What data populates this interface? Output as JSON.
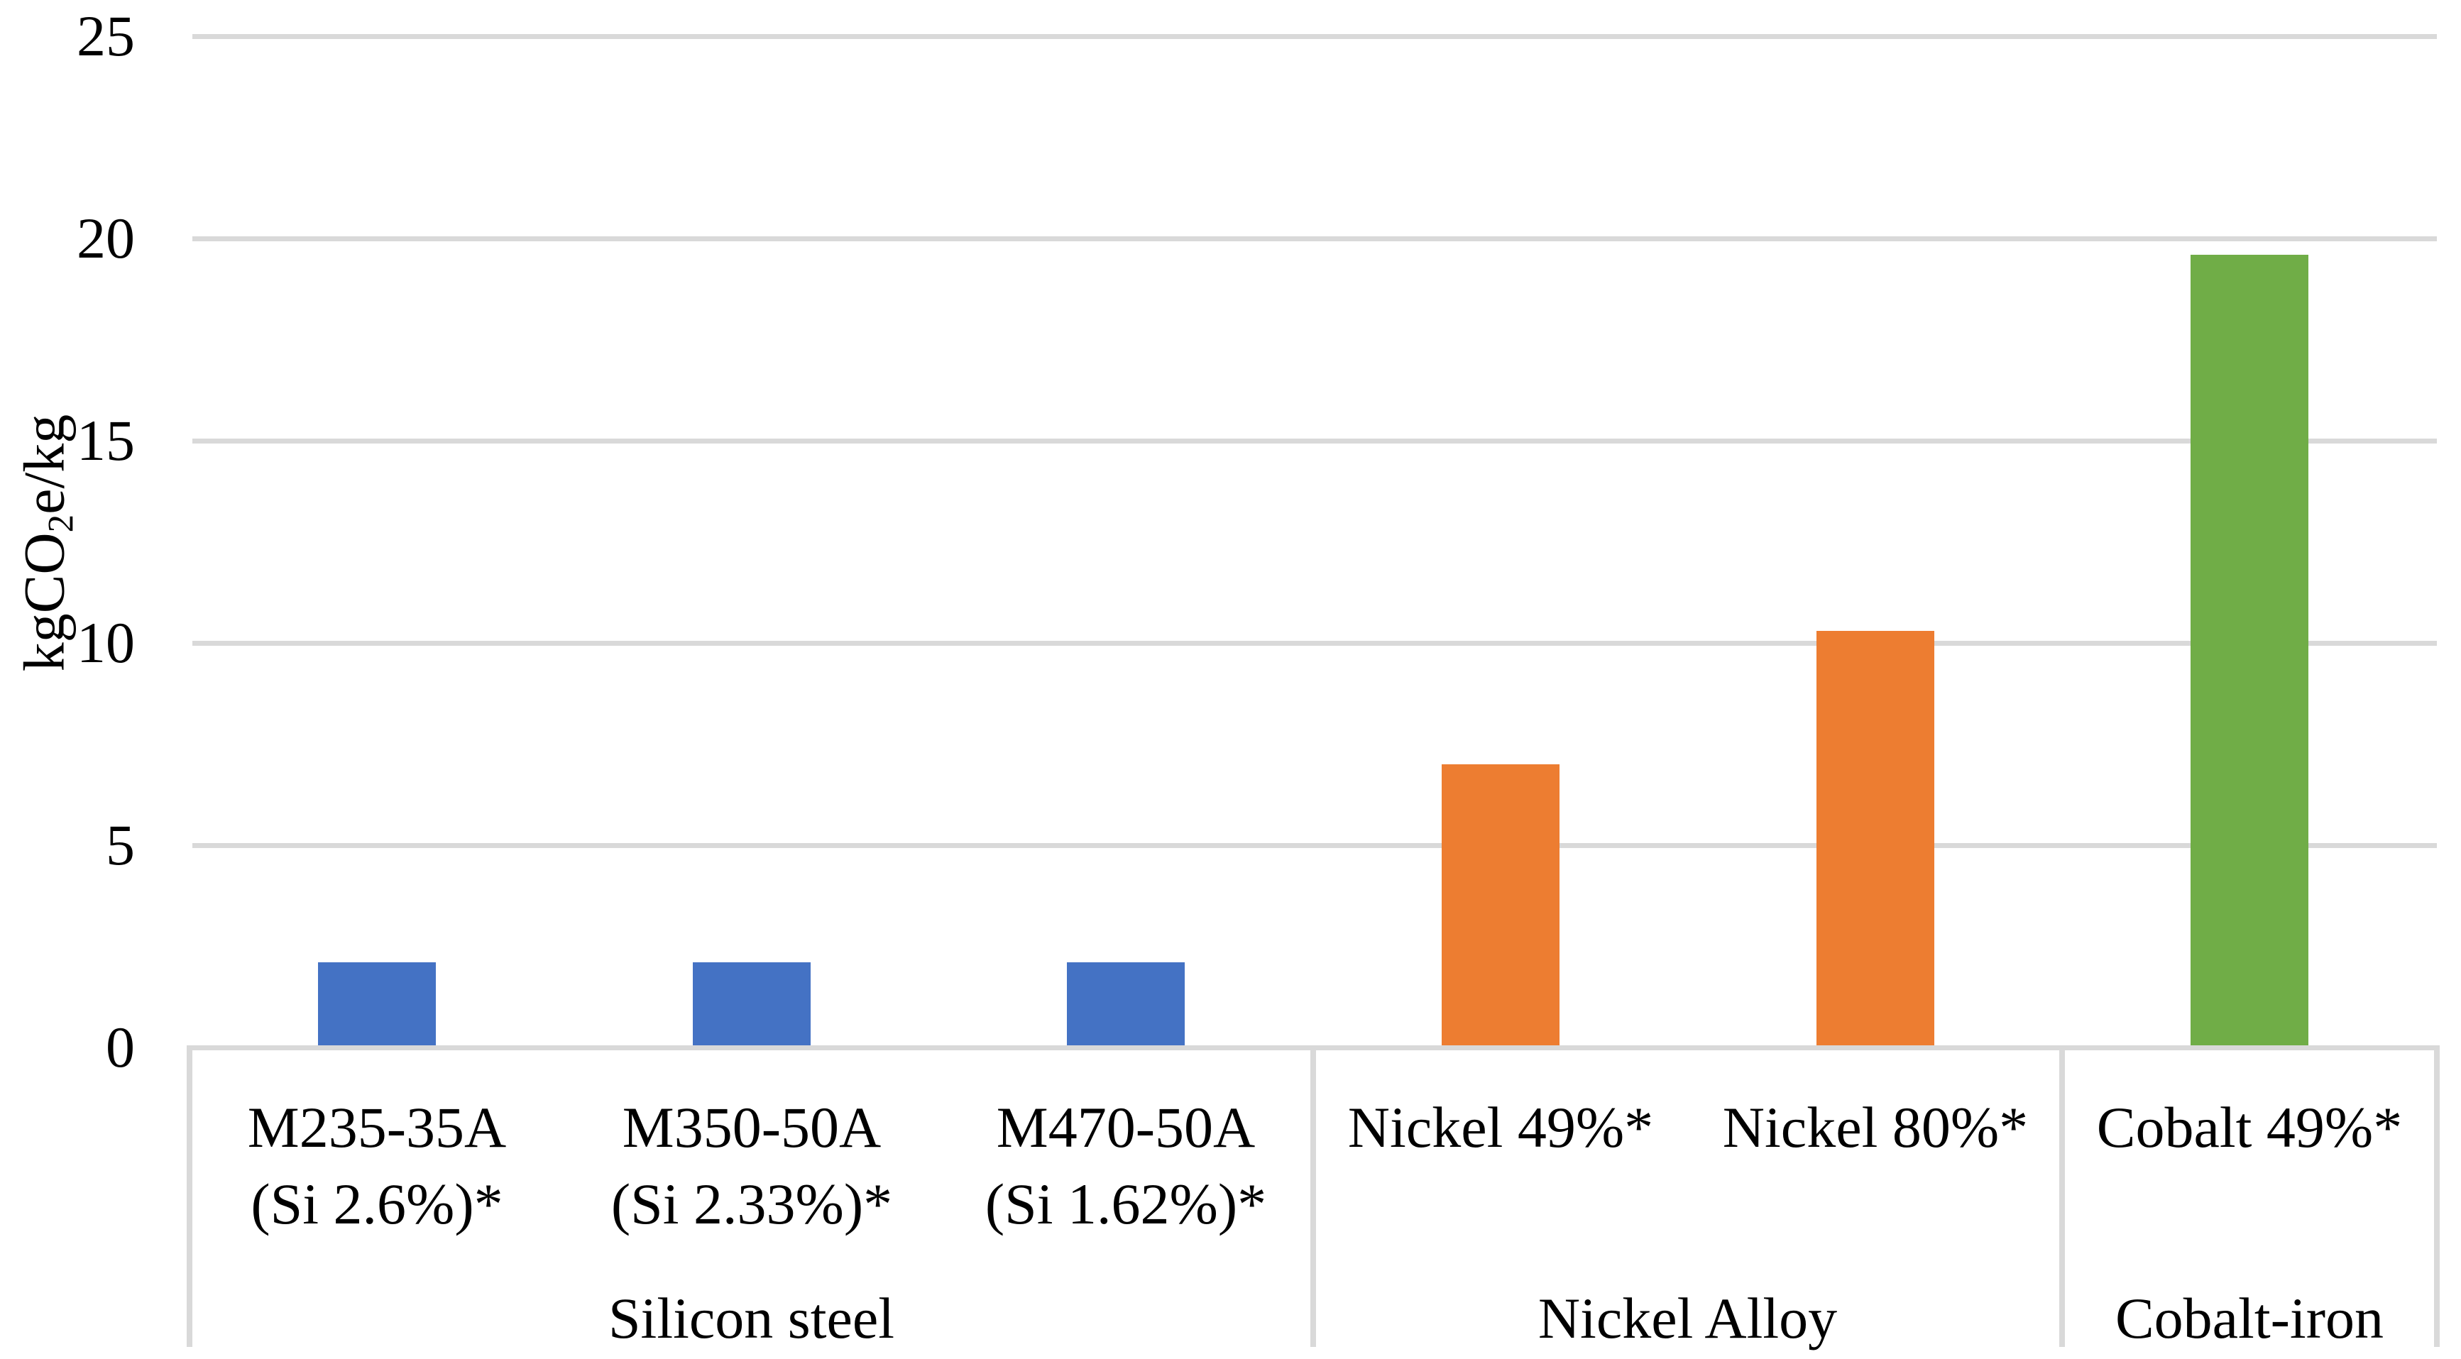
{
  "chart_data": {
    "type": "bar",
    "title": "",
    "ylabel": "kgCO2e/kg",
    "ylabel_parts": {
      "prefix": "kgCO",
      "subscript": "2",
      "suffix": "e/kg"
    },
    "xlabel": "",
    "ylim": [
      0,
      25
    ],
    "yticks": [
      0,
      5,
      10,
      15,
      20,
      25
    ],
    "grid": true,
    "legend": false,
    "groups": [
      {
        "label": "Silicon steel",
        "color": "#4472C4",
        "categories": [
          {
            "line1": "M235-35A",
            "line2": "(Si 2.6%)*"
          },
          {
            "line1": "M350-50A",
            "line2": "(Si 2.33%)*"
          },
          {
            "line1": "M470-50A",
            "line2": "(Si 1.62%)*"
          }
        ],
        "values": [
          2.1,
          2.1,
          2.1
        ]
      },
      {
        "label": "Nickel Alloy",
        "color": "#ED7D31",
        "categories": [
          {
            "line1": "Nickel 49%*",
            "line2": ""
          },
          {
            "line1": "Nickel 80%*",
            "line2": ""
          }
        ],
        "values": [
          7.0,
          10.3
        ]
      },
      {
        "label": "Cobalt-iron",
        "color": "#70AD47",
        "categories": [
          {
            "line1": "Cobalt 49%*",
            "line2": ""
          }
        ],
        "values": [
          19.6
        ]
      }
    ],
    "colors": {
      "silicon_steel_bar": "#4472C4",
      "nickel_alloy_bar": "#ED7D31",
      "cobalt_iron_bar": "#70AD47",
      "gridline": "#D9D9D9",
      "category_border": "#D9D9D9",
      "text": "#000000",
      "background": "#FFFFFF"
    }
  }
}
